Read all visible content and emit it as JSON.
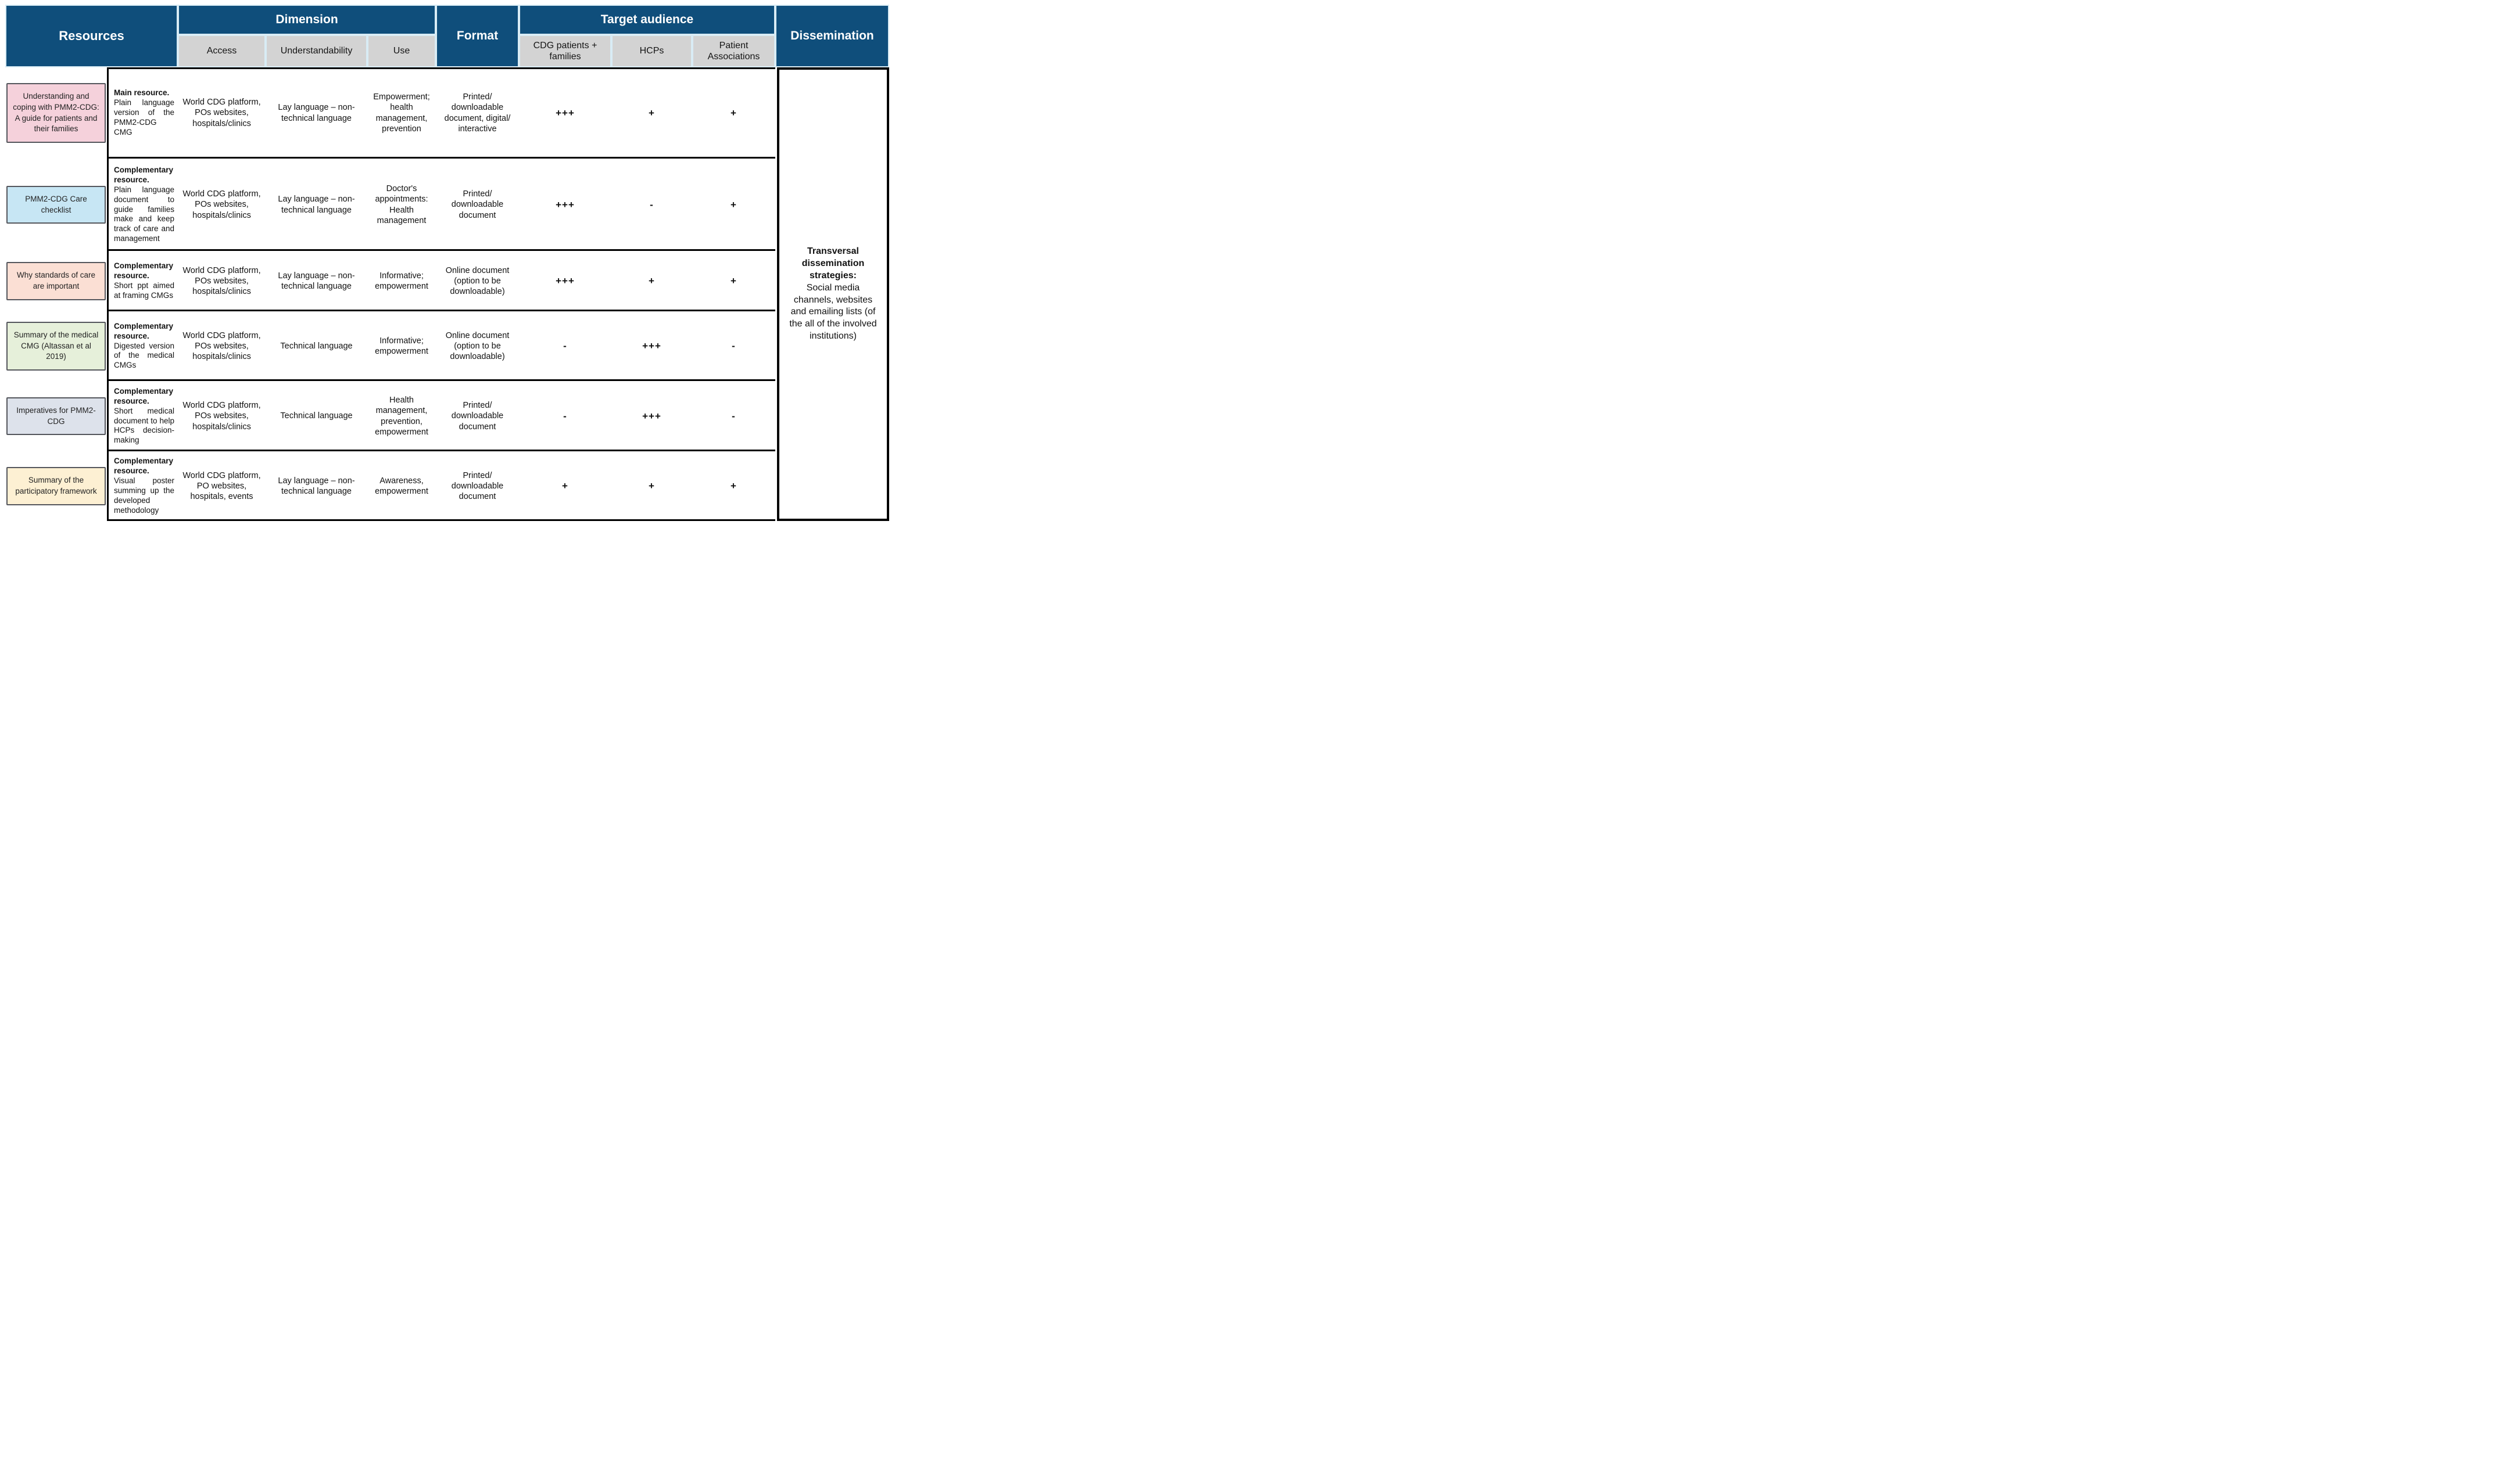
{
  "header": {
    "resources": "Resources",
    "dimension": "Dimension",
    "dimension_sub": [
      "Access",
      "Understandability",
      "Use"
    ],
    "format": "Format",
    "target_audience": "Target audience",
    "target_sub": [
      "CDG patients + families",
      "HCPs",
      "Patient Associations"
    ],
    "dissemination": "Dissemination"
  },
  "colors": {
    "header_bg": "#0f4e7b",
    "subheader_bg": "#d3d3d3",
    "header_gap": "#d9ecf5",
    "row_line": "#000000"
  },
  "rows": [
    {
      "resource": "Understanding and coping with PMM2-CDG: A guide for patients and their families",
      "box_color": "#f5d1db",
      "type": "Main resource.",
      "description": "Plain language version of the PMM2-CDG CMG",
      "access": "World CDG platform, POs websites, hospitals/clinics",
      "understandability": "Lay language – non-technical language",
      "use": "Empowerment; health management, prevention",
      "format": "Printed/ downloadable document, digital/ interactive",
      "cdg_patients": "+++",
      "hcps": "+",
      "patient_associations": "+"
    },
    {
      "resource": "PMM2-CDG Care checklist",
      "box_color": "#c7e6f4",
      "type": "Complementary resource.",
      "description": "Plain language document to guide families make and keep track of care and management",
      "access": "World CDG platform, POs websites, hospitals/clinics",
      "understandability": "Lay language – non-technical language",
      "use": "Doctor's appointments: Health management",
      "format": "Printed/ downloadable document",
      "cdg_patients": "+++",
      "hcps": "-",
      "patient_associations": "+"
    },
    {
      "resource": "Why standards of care are important",
      "box_color": "#fbdfd4",
      "type": "Complementary resource.",
      "description": "Short ppt aimed at framing CMGs",
      "access": "World CDG platform, POs websites, hospitals/clinics",
      "understandability": "Lay language – non-technical language",
      "use": "Informative; empowerment",
      "format": "Online document (option to be downloadable)",
      "cdg_patients": "+++",
      "hcps": "+",
      "patient_associations": "+"
    },
    {
      "resource": "Summary of the medical CMG (Altassan et al 2019)",
      "box_color": "#e6f0da",
      "type": "Complementary resource.",
      "description": "Digested version of the medical CMGs",
      "access": "World CDG platform, POs websites, hospitals/clinics",
      "understandability": "Technical language",
      "use": "Informative; empowerment",
      "format": "Online document (option to be downloadable)",
      "cdg_patients": "-",
      "hcps": "+++",
      "patient_associations": "-"
    },
    {
      "resource": "Imperatives for PMM2-CDG",
      "box_color": "#dde2eb",
      "type": "Complementary resource.",
      "description": "Short medical document to help HCPs decision-making",
      "access": "World CDG platform, POs websites, hospitals/clinics",
      "understandability": "Technical language",
      "use": "Health management, prevention, empowerment",
      "format": "Printed/ downloadable document",
      "cdg_patients": "-",
      "hcps": "+++",
      "patient_associations": "-"
    },
    {
      "resource": "Summary of the participatory framework",
      "box_color": "#fdf0d3",
      "type": "Complementary resource.",
      "description": "Visual poster summing up the developed methodology",
      "access": "World CDG platform, PO websites, hospitals, events",
      "understandability": "Lay language – non-technical language",
      "use": "Awareness, empowerment",
      "format": "Printed/ downloadable document",
      "cdg_patients": "+",
      "hcps": "+",
      "patient_associations": "+"
    }
  ],
  "dissemination": {
    "title": "Transversal dissemination strategies:",
    "text": "Social media channels, websites and emailing lists (of the all of the involved institutions)"
  }
}
